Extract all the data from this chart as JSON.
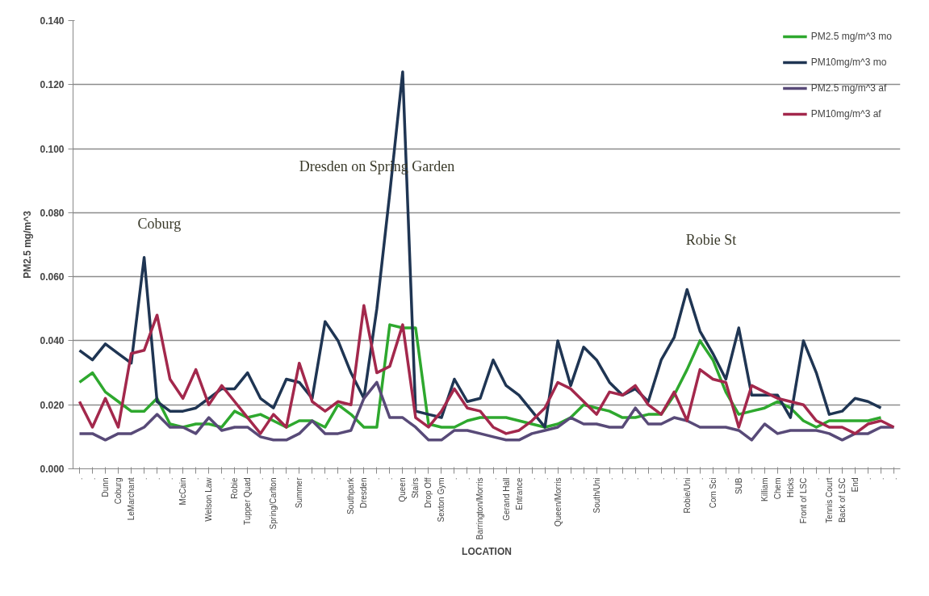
{
  "chart_data": {
    "type": "line",
    "xlabel": "LOCATION",
    "ylabel": "PM2.5 mg/m^3",
    "categories": [
      ".",
      ".",
      "Dunn",
      "Coburg",
      "LeMarchant",
      ".",
      ".",
      ".",
      "McCain",
      ".",
      "Welson Law",
      ".",
      "Robie",
      "Tupper Quad",
      ".",
      "Spring/Carlton",
      ".",
      "Summer",
      ".",
      ".",
      ".",
      "Southpark",
      "Dresden",
      ".",
      ".",
      "Queen",
      "Stairs",
      "Drop Off",
      "Sexton Gym",
      ".",
      ".",
      "Barrington/Morris",
      ".",
      "Gerand Hall",
      "Entrance",
      ".",
      ".",
      "Queen/Morris",
      ".",
      ".",
      "South/Uni",
      ".",
      ".",
      ".",
      ".",
      ".",
      ".",
      "Robie/Uni",
      ".",
      "Com Sci",
      ".",
      "SUB",
      ".",
      "Killiam",
      "Chem",
      "Hicks",
      "Front of LSC",
      ".",
      "Tennis Court",
      "Back of LSC",
      "End",
      ".",
      ".",
      "."
    ],
    "series": [
      {
        "name": "PM2.5 mg/m^3 mo",
        "color": "#2ea82e",
        "values": [
          0.027,
          0.03,
          0.024,
          0.021,
          0.018,
          0.018,
          0.022,
          0.014,
          0.013,
          0.014,
          0.014,
          0.013,
          0.018,
          0.016,
          0.017,
          0.015,
          0.013,
          0.015,
          0.015,
          0.013,
          0.02,
          0.017,
          0.013,
          0.013,
          0.045,
          0.044,
          0.044,
          0.014,
          0.013,
          0.013,
          0.015,
          0.016,
          0.016,
          0.016,
          0.015,
          0.014,
          0.013,
          0.014,
          0.016,
          0.02,
          0.019,
          0.018,
          0.016,
          0.016,
          0.017,
          0.017,
          0.023,
          0.031,
          0.04,
          0.034,
          0.024,
          0.017,
          0.018,
          0.019,
          0.021,
          0.019,
          0.015,
          0.013,
          0.015,
          0.015,
          0.015,
          0.015,
          0.016,
          null
        ]
      },
      {
        "name": "PM10mg/m^3 mo",
        "color": "#1f3553",
        "values": [
          0.037,
          0.034,
          0.039,
          0.036,
          0.033,
          0.066,
          0.021,
          0.018,
          0.018,
          0.019,
          0.022,
          0.025,
          0.025,
          0.03,
          0.022,
          0.019,
          0.028,
          0.027,
          0.022,
          0.046,
          0.04,
          0.03,
          0.022,
          0.05,
          0.086,
          0.124,
          0.018,
          0.017,
          0.016,
          0.028,
          0.021,
          0.022,
          0.034,
          0.026,
          0.023,
          0.018,
          0.013,
          0.04,
          0.026,
          0.038,
          0.034,
          0.027,
          0.023,
          0.025,
          0.021,
          0.034,
          0.041,
          0.056,
          0.043,
          0.036,
          0.028,
          0.044,
          0.023,
          0.023,
          0.023,
          0.016,
          0.04,
          0.03,
          0.017,
          0.018,
          0.022,
          0.021,
          0.019,
          null
        ]
      },
      {
        "name": "PM2.5 mg/m^3 af",
        "color": "#584a78",
        "values": [
          0.011,
          0.011,
          0.009,
          0.011,
          0.011,
          0.013,
          0.017,
          0.013,
          0.013,
          0.011,
          0.016,
          0.012,
          0.013,
          0.013,
          0.01,
          0.009,
          0.009,
          0.011,
          0.015,
          0.011,
          0.011,
          0.012,
          0.022,
          0.027,
          0.016,
          0.016,
          0.013,
          0.009,
          0.009,
          0.012,
          0.012,
          0.011,
          0.01,
          0.009,
          0.009,
          0.011,
          0.012,
          0.013,
          0.016,
          0.014,
          0.014,
          0.013,
          0.013,
          0.019,
          0.014,
          0.014,
          0.016,
          0.015,
          0.013,
          0.013,
          0.013,
          0.012,
          0.009,
          0.014,
          0.011,
          0.012,
          0.012,
          0.012,
          0.011,
          0.009,
          0.011,
          0.011,
          0.013,
          0.013
        ]
      },
      {
        "name": "PM10mg/m^3 af",
        "color": "#a3284c",
        "values": [
          0.021,
          0.013,
          0.022,
          0.013,
          0.036,
          0.037,
          0.048,
          0.028,
          0.022,
          0.031,
          0.02,
          0.026,
          0.021,
          0.016,
          0.011,
          0.017,
          0.013,
          0.033,
          0.021,
          0.018,
          0.021,
          0.02,
          0.051,
          0.03,
          0.032,
          0.045,
          0.016,
          0.013,
          0.018,
          0.025,
          0.019,
          0.018,
          0.013,
          0.011,
          0.012,
          0.015,
          0.019,
          0.027,
          0.025,
          0.021,
          0.017,
          0.024,
          0.023,
          0.026,
          0.02,
          0.017,
          0.024,
          0.015,
          0.031,
          0.028,
          0.027,
          0.013,
          0.026,
          0.024,
          0.022,
          0.021,
          0.02,
          0.015,
          0.013,
          0.013,
          0.011,
          0.014,
          0.015,
          0.013
        ]
      }
    ],
    "ylim": [
      0,
      0.14
    ],
    "yticks": [
      {
        "value": 0,
        "label": "0.000"
      },
      {
        "value": 0.02,
        "label": "0.020"
      },
      {
        "value": 0.04,
        "label": "0.040"
      },
      {
        "value": 0.06,
        "label": "0.060"
      },
      {
        "value": 0.08,
        "label": "0.080"
      },
      {
        "value": 0.1,
        "label": "0.100"
      },
      {
        "value": 0.12,
        "label": "0.120"
      },
      {
        "value": 0.14,
        "label": "0.140"
      }
    ],
    "annotations": [
      "Coburg",
      "Dresden on Spring Garden",
      "Robie St"
    ],
    "grid": "y",
    "legend": "top right",
    "marker": "none",
    "line_style": "solid"
  }
}
